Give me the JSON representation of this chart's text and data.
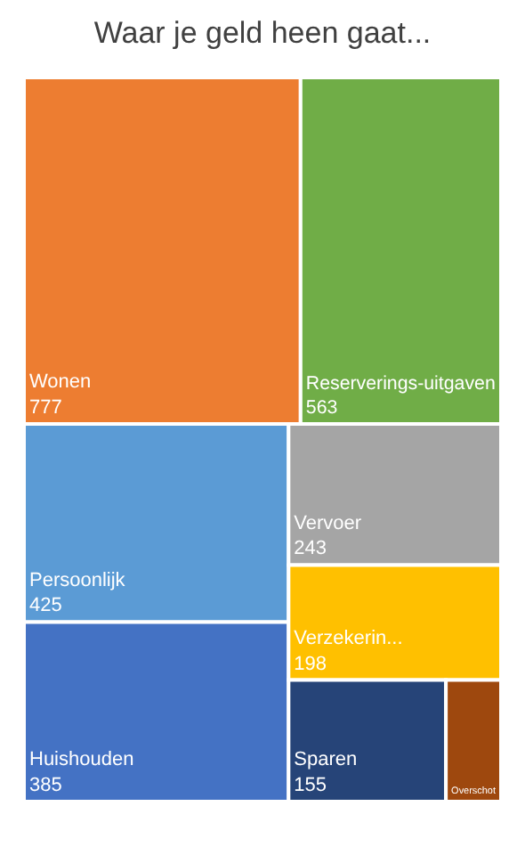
{
  "chart_data": {
    "type": "other",
    "title": "Waar je geld heen gaat...",
    "categories": [
      "Wonen",
      "Reserverings-uitgaven",
      "Persoonlijk",
      "Huishouden",
      "Vervoer",
      "Verzekerin...",
      "Sparen",
      "Overschot"
    ],
    "values": [
      777,
      563,
      425,
      385,
      243,
      198,
      155,
      null
    ],
    "value_labels": [
      "777",
      "563",
      "425",
      "385",
      "243",
      "198",
      "155",
      null
    ],
    "colors": [
      "#ed7d31",
      "#70ad47",
      "#5b9bd5",
      "#4472c4",
      "#a5a5a5",
      "#ffc000",
      "#264478",
      "#9e480e"
    ]
  }
}
